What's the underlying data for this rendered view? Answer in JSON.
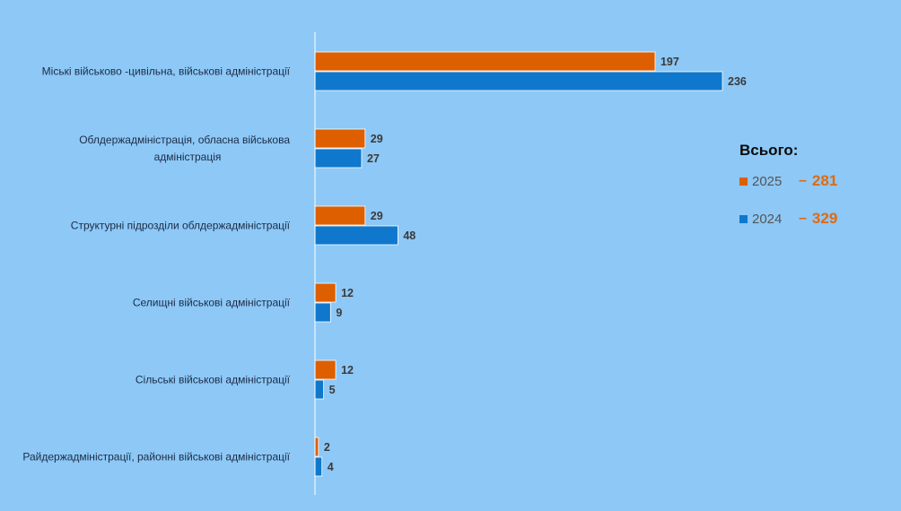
{
  "chart_data": {
    "type": "bar",
    "orientation": "horizontal",
    "categories": [
      [
        "Міські військово  -цивільна, військові адміністрації"
      ],
      [
        "Облдержадміністрація, обласна військова",
        "адміністрація"
      ],
      [
        "Структурні підрозділи облдержадміністрації"
      ],
      [
        "Селищні військові адміністрації"
      ],
      [
        "Сільські військові адміністрації"
      ],
      [
        "Райдержадміністрації, районні військові адміністрації"
      ]
    ],
    "series": [
      {
        "name": "2025",
        "color": "#dd5f00",
        "values": [
          197,
          29,
          29,
          12,
          12,
          2
        ]
      },
      {
        "name": "2024",
        "color": "#0f78cc",
        "values": [
          236,
          27,
          48,
          9,
          5,
          4
        ]
      }
    ],
    "xlim": [
      0,
      236
    ],
    "grid": false,
    "legend_position": "right"
  },
  "totals": {
    "title": "Всього:",
    "items": [
      {
        "year": "2025",
        "dash": "–",
        "value": "281",
        "color": "#dd5f00"
      },
      {
        "year": "2024",
        "dash": "–",
        "value": "329",
        "color": "#0f78cc"
      }
    ]
  }
}
